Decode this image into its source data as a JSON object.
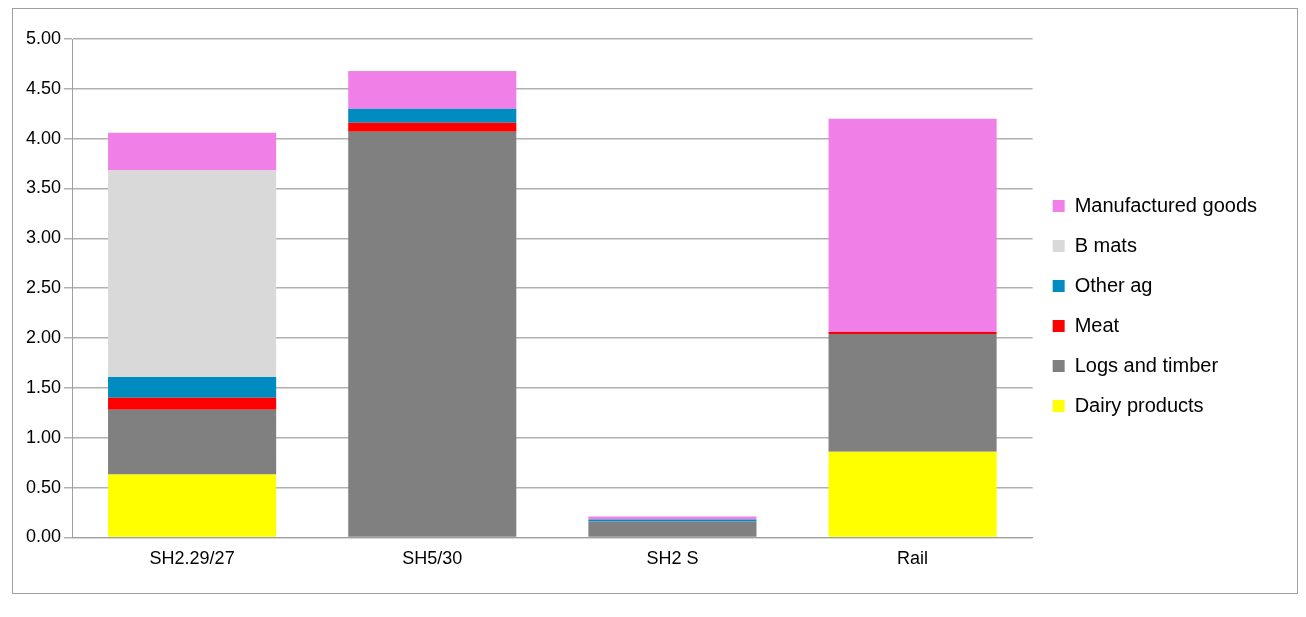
{
  "chart_data": {
    "type": "bar",
    "stacked": true,
    "categories": [
      "SH2.29/27",
      "SH5/30",
      "SH2 S",
      "Rail"
    ],
    "series": [
      {
        "name": "Dairy products",
        "color": "#ffff00",
        "values": [
          0.63,
          null,
          null,
          0.86
        ]
      },
      {
        "name": "Logs and timber",
        "color": "#808080",
        "values": [
          0.65,
          4.07,
          0.16,
          1.18
        ]
      },
      {
        "name": "Meat",
        "color": "#ff0000",
        "values": [
          0.12,
          0.09,
          null,
          0.02
        ]
      },
      {
        "name": "Other ag",
        "color": "#008cc0",
        "values": [
          0.21,
          0.14,
          0.02,
          null
        ]
      },
      {
        "name": "B mats",
        "color": "#d9d9d9",
        "values": [
          2.07,
          null,
          null,
          null
        ]
      },
      {
        "name": "Manufactured goods",
        "color": "#f080e8",
        "values": [
          0.38,
          0.38,
          0.03,
          2.14
        ]
      }
    ],
    "ylim": [
      0,
      5
    ],
    "yticks": [
      {
        "value": 0,
        "label": "0.00"
      },
      {
        "value": 0.5,
        "label": "0.50"
      },
      {
        "value": 1,
        "label": "1.00"
      },
      {
        "value": 1.5,
        "label": "1.50"
      },
      {
        "value": 2,
        "label": "2.00"
      },
      {
        "value": 2.5,
        "label": "2.50"
      },
      {
        "value": 3,
        "label": "3.00"
      },
      {
        "value": 3.5,
        "label": "3.50"
      },
      {
        "value": 4,
        "label": "4.00"
      },
      {
        "value": 4.5,
        "label": "4.50"
      },
      {
        "value": 5,
        "label": "5.00"
      }
    ],
    "grid": "y",
    "legend": "right"
  }
}
